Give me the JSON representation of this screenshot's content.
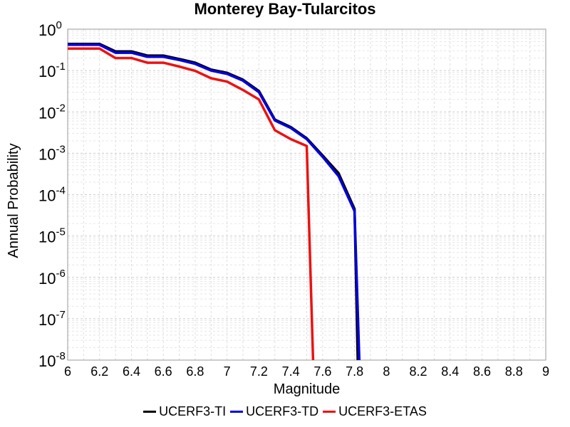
{
  "chart_data": {
    "type": "line",
    "title": "Monterey Bay-Tularcitos",
    "xlabel": "Magnitude",
    "ylabel": "Annual Probability",
    "xlim": [
      6,
      9
    ],
    "ylim": [
      1e-08,
      1
    ],
    "yscale": "log",
    "grid": true,
    "legend_position": "bottom",
    "x_ticks": [
      "6",
      "6.2",
      "6.4",
      "6.6",
      "6.8",
      "7",
      "7.2",
      "7.4",
      "7.6",
      "7.8",
      "8",
      "8.2",
      "8.4",
      "8.6",
      "8.8",
      "9"
    ],
    "y_ticks": [
      {
        "base": "10",
        "exp": "0"
      },
      {
        "base": "10",
        "exp": "-1"
      },
      {
        "base": "10",
        "exp": "-2"
      },
      {
        "base": "10",
        "exp": "-3"
      },
      {
        "base": "10",
        "exp": "-4"
      },
      {
        "base": "10",
        "exp": "-5"
      },
      {
        "base": "10",
        "exp": "-6"
      },
      {
        "base": "10",
        "exp": "-7"
      },
      {
        "base": "10",
        "exp": "-8"
      }
    ],
    "series": [
      {
        "name": "UCERF3-TI",
        "color": "#000000",
        "x": [
          6.0,
          6.2,
          6.3,
          6.4,
          6.5,
          6.6,
          6.7,
          6.8,
          6.9,
          7.0,
          7.1,
          7.2,
          7.3,
          7.4,
          7.5,
          7.6,
          7.7,
          7.8,
          7.82
        ],
        "y": [
          0.44,
          0.44,
          0.29,
          0.29,
          0.23,
          0.23,
          0.19,
          0.155,
          0.105,
          0.088,
          0.06,
          0.032,
          0.0065,
          0.0043,
          0.0023,
          0.00088,
          0.00033,
          4.5e-05,
          1e-08
        ]
      },
      {
        "name": "UCERF3-TD",
        "color": "#0000dd",
        "x": [
          6.0,
          6.2,
          6.3,
          6.4,
          6.5,
          6.6,
          6.7,
          6.8,
          6.9,
          7.0,
          7.1,
          7.2,
          7.3,
          7.4,
          7.5,
          7.6,
          7.7,
          7.8,
          7.83
        ],
        "y": [
          0.42,
          0.42,
          0.27,
          0.27,
          0.215,
          0.215,
          0.18,
          0.145,
          0.1,
          0.083,
          0.057,
          0.03,
          0.0062,
          0.0041,
          0.0022,
          0.00082,
          0.00028,
          4e-05,
          1e-08
        ]
      },
      {
        "name": "UCERF3-ETAS",
        "color": "#ee1111",
        "x": [
          6.0,
          6.2,
          6.3,
          6.4,
          6.5,
          6.6,
          6.7,
          6.8,
          6.9,
          7.0,
          7.1,
          7.2,
          7.3,
          7.4,
          7.5,
          7.54
        ],
        "y": [
          0.34,
          0.34,
          0.2,
          0.2,
          0.155,
          0.155,
          0.125,
          0.098,
          0.065,
          0.054,
          0.034,
          0.02,
          0.0036,
          0.0022,
          0.0015,
          1e-08
        ]
      }
    ]
  }
}
